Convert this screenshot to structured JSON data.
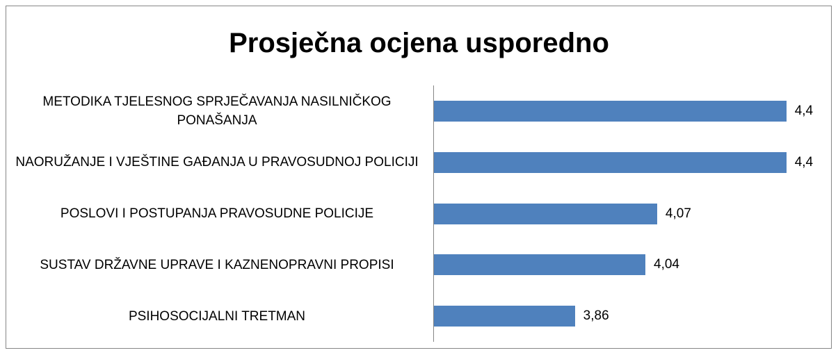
{
  "chart_data": {
    "type": "bar",
    "orientation": "horizontal",
    "title": "Prosječna ocjena usporedno",
    "categories": [
      "METODIKA TJELESNOG SPRJEČAVANJA NASILNIČKOG PONAŠANJA",
      "NAORUŽANJE I VJEŠTINE GAĐANJA U PRAVOSUDNOJ POLICIJI",
      "POSLOVI I POSTUPANJA PRAVOSUDNE POLICIJE",
      "SUSTAV DRŽAVNE UPRAVE I KAZNENOPRAVNI PROPISI",
      "PSIHOSOCIJALNI TRETMAN"
    ],
    "values": [
      4.4,
      4.4,
      4.07,
      4.04,
      3.86
    ],
    "value_labels": [
      "4,4",
      "4,4",
      "4,07",
      "4,04",
      "3,86"
    ],
    "color": "#4f81bd",
    "xlim": [
      3.5,
      4.5
    ]
  }
}
